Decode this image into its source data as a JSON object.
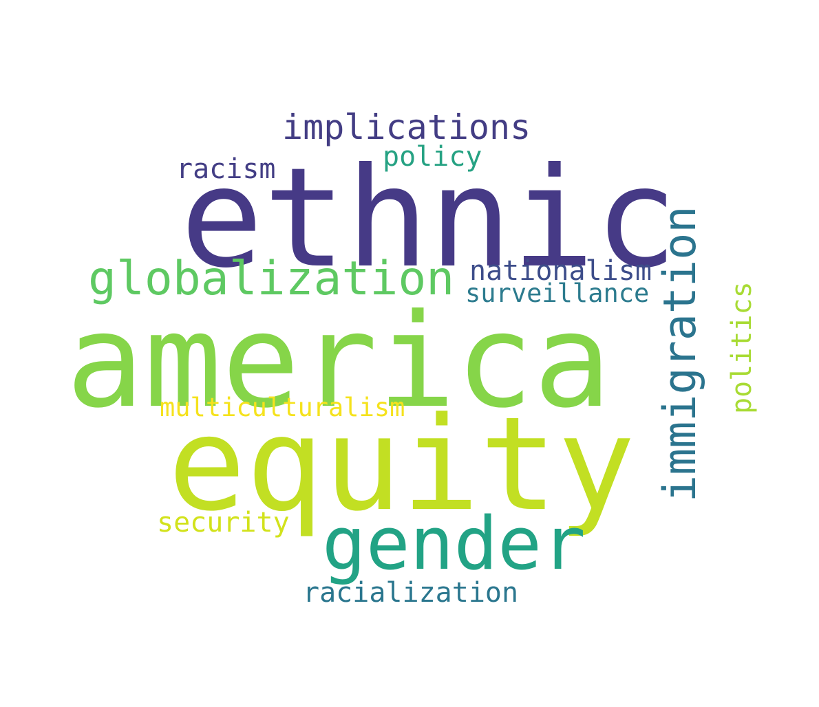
{
  "words": [
    {
      "text": "ethnic",
      "color": "#463a86",
      "orientation": "horizontal"
    },
    {
      "text": "america",
      "color": "#86d549",
      "orientation": "horizontal"
    },
    {
      "text": "equity",
      "color": "#c2df23",
      "orientation": "horizontal"
    },
    {
      "text": "gender",
      "color": "#22a385",
      "orientation": "horizontal"
    },
    {
      "text": "globalization",
      "color": "#5ec962",
      "orientation": "horizontal"
    },
    {
      "text": "implications",
      "color": "#433d84",
      "orientation": "horizontal"
    },
    {
      "text": "policy",
      "color": "#26a283",
      "orientation": "horizontal"
    },
    {
      "text": "racism",
      "color": "#433e85",
      "orientation": "horizontal"
    },
    {
      "text": "nationalism",
      "color": "#3d4d8a",
      "orientation": "horizontal"
    },
    {
      "text": "surveillance",
      "color": "#2c7b8e",
      "orientation": "horizontal"
    },
    {
      "text": "multiculturalism",
      "color": "#f5e21d",
      "orientation": "horizontal"
    },
    {
      "text": "security",
      "color": "#d2e21b",
      "orientation": "horizontal"
    },
    {
      "text": "racialization",
      "color": "#2a768e",
      "orientation": "horizontal"
    },
    {
      "text": "immigration",
      "color": "#2b748e",
      "orientation": "vertical"
    },
    {
      "text": "politics",
      "color": "#a8db34",
      "orientation": "vertical"
    }
  ]
}
